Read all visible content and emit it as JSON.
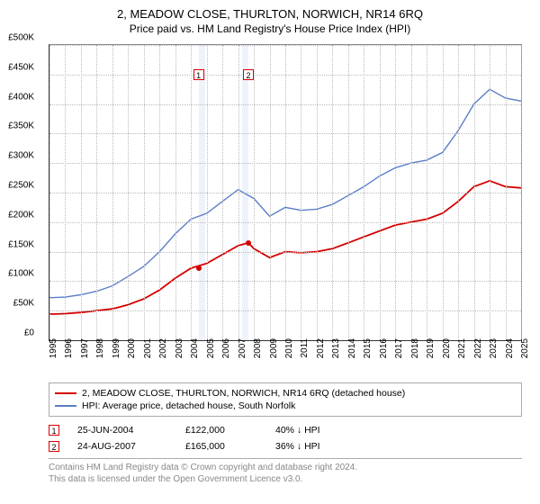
{
  "title": "2, MEADOW CLOSE, THURLTON, NORWICH, NR14 6RQ",
  "subtitle": "Price paid vs. HM Land Registry's House Price Index (HPI)",
  "chart": {
    "type": "line",
    "background_color": "#ffffff",
    "grid_color": "#bbbbbb",
    "y_axis": {
      "min": 0,
      "max": 500000,
      "step": 50000,
      "labels": [
        "£0",
        "£50K",
        "£100K",
        "£150K",
        "£200K",
        "£250K",
        "£300K",
        "£350K",
        "£400K",
        "£450K",
        "£500K"
      ],
      "label_fontsize": 10
    },
    "x_axis": {
      "years": [
        1995,
        1996,
        1997,
        1998,
        1999,
        2000,
        2001,
        2002,
        2003,
        2004,
        2005,
        2006,
        2007,
        2008,
        2009,
        2010,
        2011,
        2012,
        2013,
        2014,
        2015,
        2016,
        2017,
        2018,
        2019,
        2020,
        2021,
        2022,
        2023,
        2024,
        2025
      ],
      "label_fontsize": 10
    },
    "bands": [
      {
        "x_start": 2004.48,
        "x_end": 2004.9,
        "fill": "#eef2fb"
      },
      {
        "x_start": 2007.25,
        "x_end": 2007.65,
        "fill": "#eef2fb"
      }
    ],
    "series": [
      {
        "name": "price_paid",
        "color": "#d40000",
        "line_width": 1.8,
        "points": [
          [
            1995,
            44000
          ],
          [
            1996,
            45000
          ],
          [
            1997,
            47000
          ],
          [
            1998,
            50000
          ],
          [
            1999,
            53000
          ],
          [
            2000,
            60000
          ],
          [
            2001,
            70000
          ],
          [
            2002,
            85000
          ],
          [
            2003,
            105000
          ],
          [
            2004,
            122000
          ],
          [
            2005,
            130000
          ],
          [
            2006,
            145000
          ],
          [
            2007,
            160000
          ],
          [
            2007.65,
            165000
          ],
          [
            2008,
            155000
          ],
          [
            2009,
            140000
          ],
          [
            2010,
            150000
          ],
          [
            2011,
            148000
          ],
          [
            2012,
            150000
          ],
          [
            2013,
            155000
          ],
          [
            2014,
            165000
          ],
          [
            2015,
            175000
          ],
          [
            2016,
            185000
          ],
          [
            2017,
            195000
          ],
          [
            2018,
            200000
          ],
          [
            2019,
            205000
          ],
          [
            2020,
            215000
          ],
          [
            2021,
            235000
          ],
          [
            2022,
            260000
          ],
          [
            2023,
            270000
          ],
          [
            2024,
            260000
          ],
          [
            2025,
            258000
          ]
        ]
      },
      {
        "name": "hpi",
        "color": "#5b7fc7",
        "line_width": 1.4,
        "points": [
          [
            1995,
            72000
          ],
          [
            1996,
            73000
          ],
          [
            1997,
            77000
          ],
          [
            1998,
            83000
          ],
          [
            1999,
            92000
          ],
          [
            2000,
            108000
          ],
          [
            2001,
            125000
          ],
          [
            2002,
            150000
          ],
          [
            2003,
            180000
          ],
          [
            2004,
            205000
          ],
          [
            2005,
            215000
          ],
          [
            2006,
            235000
          ],
          [
            2007,
            255000
          ],
          [
            2008,
            240000
          ],
          [
            2009,
            210000
          ],
          [
            2010,
            225000
          ],
          [
            2011,
            220000
          ],
          [
            2012,
            222000
          ],
          [
            2013,
            230000
          ],
          [
            2014,
            245000
          ],
          [
            2015,
            260000
          ],
          [
            2016,
            278000
          ],
          [
            2017,
            292000
          ],
          [
            2018,
            300000
          ],
          [
            2019,
            305000
          ],
          [
            2020,
            318000
          ],
          [
            2021,
            355000
          ],
          [
            2022,
            400000
          ],
          [
            2023,
            425000
          ],
          [
            2024,
            410000
          ],
          [
            2025,
            405000
          ]
        ]
      }
    ],
    "event_markers": [
      {
        "n": "1",
        "x": 2004.48,
        "y": 122000,
        "dot_color": "#d40000",
        "box_y": 450000
      },
      {
        "n": "2",
        "x": 2007.65,
        "y": 165000,
        "dot_color": "#d40000",
        "box_y": 450000
      }
    ]
  },
  "legend": {
    "items": [
      {
        "color": "#d40000",
        "label": "2, MEADOW CLOSE, THURLTON, NORWICH, NR14 6RQ (detached house)"
      },
      {
        "color": "#5b7fc7",
        "label": "HPI: Average price, detached house, South Norfolk"
      }
    ]
  },
  "events_table": [
    {
      "n": "1",
      "date": "25-JUN-2004",
      "price": "£122,000",
      "delta": "40% ↓ HPI"
    },
    {
      "n": "2",
      "date": "24-AUG-2007",
      "price": "£165,000",
      "delta": "36% ↓ HPI"
    }
  ],
  "footnote_lines": [
    "Contains HM Land Registry data © Crown copyright and database right 2024.",
    "This data is licensed under the Open Government Licence v3.0."
  ]
}
